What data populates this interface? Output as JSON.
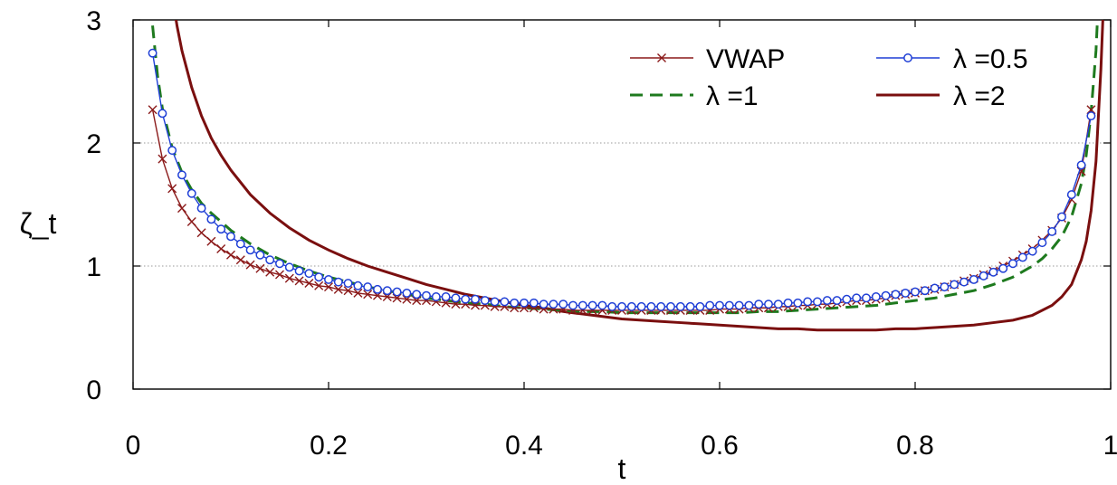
{
  "chart_data": {
    "type": "line",
    "xlabel": "t",
    "ylabel": "ζ_t",
    "xlim": [
      0,
      1
    ],
    "ylim": [
      0,
      3
    ],
    "xticks": [
      "0",
      "0.2",
      "0.4",
      "0.6",
      "0.8",
      "1"
    ],
    "yticks": [
      "0",
      "1",
      "2",
      "3"
    ],
    "grid": "horizontal dotted at y ticks",
    "legend_position": "top-right",
    "colors": {
      "vwap": "#8b1a1a",
      "lambda05": "#1f3fd6",
      "lambda1": "#1e7a1e",
      "lambda2": "#7a0f0f"
    },
    "series": [
      {
        "name": "VWAP",
        "legend_text": "VWAP",
        "style": "line-x",
        "x": [
          0.02,
          0.03,
          0.04,
          0.05,
          0.06,
          0.07,
          0.08,
          0.09,
          0.1,
          0.11,
          0.12,
          0.13,
          0.14,
          0.15,
          0.16,
          0.17,
          0.18,
          0.19,
          0.2,
          0.21,
          0.22,
          0.23,
          0.24,
          0.25,
          0.26,
          0.27,
          0.28,
          0.29,
          0.3,
          0.31,
          0.32,
          0.33,
          0.34,
          0.35,
          0.36,
          0.37,
          0.38,
          0.39,
          0.4,
          0.41,
          0.42,
          0.43,
          0.44,
          0.45,
          0.46,
          0.47,
          0.48,
          0.49,
          0.5,
          0.51,
          0.52,
          0.53,
          0.54,
          0.55,
          0.56,
          0.57,
          0.58,
          0.59,
          0.6,
          0.61,
          0.62,
          0.63,
          0.64,
          0.65,
          0.66,
          0.67,
          0.68,
          0.69,
          0.7,
          0.71,
          0.72,
          0.73,
          0.74,
          0.75,
          0.76,
          0.77,
          0.78,
          0.79,
          0.8,
          0.81,
          0.82,
          0.83,
          0.84,
          0.85,
          0.86,
          0.87,
          0.88,
          0.89,
          0.9,
          0.91,
          0.92,
          0.93,
          0.94,
          0.95,
          0.96,
          0.97,
          0.98
        ],
        "y": [
          2.27,
          1.87,
          1.63,
          1.47,
          1.36,
          1.27,
          1.2,
          1.14,
          1.09,
          1.05,
          1.01,
          0.98,
          0.95,
          0.93,
          0.9,
          0.88,
          0.86,
          0.84,
          0.83,
          0.81,
          0.8,
          0.78,
          0.77,
          0.76,
          0.75,
          0.74,
          0.73,
          0.72,
          0.72,
          0.71,
          0.7,
          0.69,
          0.69,
          0.68,
          0.68,
          0.67,
          0.67,
          0.66,
          0.66,
          0.66,
          0.65,
          0.65,
          0.65,
          0.64,
          0.64,
          0.64,
          0.64,
          0.64,
          0.64,
          0.64,
          0.64,
          0.64,
          0.64,
          0.64,
          0.64,
          0.64,
          0.64,
          0.64,
          0.65,
          0.65,
          0.65,
          0.66,
          0.66,
          0.66,
          0.67,
          0.67,
          0.68,
          0.68,
          0.69,
          0.69,
          0.7,
          0.71,
          0.72,
          0.72,
          0.73,
          0.74,
          0.76,
          0.77,
          0.78,
          0.8,
          0.81,
          0.83,
          0.85,
          0.88,
          0.9,
          0.93,
          0.96,
          1.0,
          1.04,
          1.09,
          1.14,
          1.21,
          1.29,
          1.39,
          1.54,
          1.77,
          2.27
        ]
      },
      {
        "name": "λ=0.5",
        "legend_text": "λ =0.5",
        "style": "line-circle",
        "x": [
          0.02,
          0.03,
          0.04,
          0.05,
          0.06,
          0.07,
          0.08,
          0.09,
          0.1,
          0.11,
          0.12,
          0.13,
          0.14,
          0.15,
          0.16,
          0.17,
          0.18,
          0.19,
          0.2,
          0.21,
          0.22,
          0.23,
          0.24,
          0.25,
          0.26,
          0.27,
          0.28,
          0.29,
          0.3,
          0.31,
          0.32,
          0.33,
          0.34,
          0.35,
          0.36,
          0.37,
          0.38,
          0.39,
          0.4,
          0.41,
          0.42,
          0.43,
          0.44,
          0.45,
          0.46,
          0.47,
          0.48,
          0.49,
          0.5,
          0.51,
          0.52,
          0.53,
          0.54,
          0.55,
          0.56,
          0.57,
          0.58,
          0.59,
          0.6,
          0.61,
          0.62,
          0.63,
          0.64,
          0.65,
          0.66,
          0.67,
          0.68,
          0.69,
          0.7,
          0.71,
          0.72,
          0.73,
          0.74,
          0.75,
          0.76,
          0.77,
          0.78,
          0.79,
          0.8,
          0.81,
          0.82,
          0.83,
          0.84,
          0.85,
          0.86,
          0.87,
          0.88,
          0.89,
          0.9,
          0.91,
          0.92,
          0.93,
          0.94,
          0.95,
          0.96,
          0.97,
          0.98
        ],
        "y": [
          2.73,
          2.24,
          1.94,
          1.74,
          1.59,
          1.47,
          1.38,
          1.3,
          1.24,
          1.18,
          1.13,
          1.09,
          1.05,
          1.02,
          0.99,
          0.96,
          0.94,
          0.91,
          0.89,
          0.87,
          0.86,
          0.84,
          0.83,
          0.81,
          0.8,
          0.79,
          0.78,
          0.77,
          0.76,
          0.75,
          0.75,
          0.74,
          0.73,
          0.73,
          0.72,
          0.71,
          0.71,
          0.7,
          0.7,
          0.7,
          0.69,
          0.69,
          0.69,
          0.68,
          0.68,
          0.68,
          0.68,
          0.67,
          0.67,
          0.67,
          0.67,
          0.67,
          0.67,
          0.67,
          0.67,
          0.67,
          0.67,
          0.68,
          0.68,
          0.68,
          0.68,
          0.68,
          0.69,
          0.69,
          0.69,
          0.7,
          0.7,
          0.71,
          0.71,
          0.72,
          0.72,
          0.73,
          0.74,
          0.74,
          0.75,
          0.76,
          0.77,
          0.78,
          0.79,
          0.8,
          0.82,
          0.83,
          0.85,
          0.87,
          0.89,
          0.92,
          0.95,
          0.98,
          1.02,
          1.07,
          1.12,
          1.19,
          1.28,
          1.4,
          1.58,
          1.82,
          2.22
        ]
      },
      {
        "name": "λ=1",
        "legend_text": "λ =1",
        "style": "dashed",
        "x": [
          0.015,
          0.02,
          0.025,
          0.03,
          0.04,
          0.05,
          0.06,
          0.07,
          0.08,
          0.1,
          0.12,
          0.14,
          0.16,
          0.18,
          0.2,
          0.22,
          0.24,
          0.26,
          0.28,
          0.3,
          0.32,
          0.34,
          0.36,
          0.38,
          0.4,
          0.42,
          0.44,
          0.46,
          0.48,
          0.5,
          0.52,
          0.54,
          0.56,
          0.58,
          0.6,
          0.62,
          0.64,
          0.66,
          0.68,
          0.7,
          0.72,
          0.74,
          0.76,
          0.78,
          0.8,
          0.82,
          0.84,
          0.86,
          0.88,
          0.9,
          0.92,
          0.93,
          0.94,
          0.95,
          0.96,
          0.97,
          0.975,
          0.98,
          0.985,
          0.99
        ],
        "y": [
          3.6,
          2.95,
          2.55,
          2.28,
          1.96,
          1.76,
          1.62,
          1.51,
          1.43,
          1.29,
          1.18,
          1.09,
          1.02,
          0.96,
          0.91,
          0.87,
          0.83,
          0.8,
          0.77,
          0.74,
          0.72,
          0.7,
          0.69,
          0.67,
          0.66,
          0.65,
          0.64,
          0.63,
          0.63,
          0.62,
          0.62,
          0.62,
          0.62,
          0.62,
          0.62,
          0.62,
          0.63,
          0.63,
          0.64,
          0.65,
          0.66,
          0.67,
          0.68,
          0.7,
          0.72,
          0.74,
          0.77,
          0.8,
          0.85,
          0.91,
          1.0,
          1.06,
          1.14,
          1.24,
          1.4,
          1.67,
          1.9,
          2.25,
          2.75,
          3.6
        ]
      },
      {
        "name": "λ=2",
        "legend_text": "λ =2",
        "style": "solid-thick",
        "x": [
          0.035,
          0.04,
          0.045,
          0.05,
          0.06,
          0.07,
          0.08,
          0.09,
          0.1,
          0.12,
          0.14,
          0.16,
          0.18,
          0.2,
          0.22,
          0.24,
          0.26,
          0.28,
          0.3,
          0.32,
          0.34,
          0.36,
          0.38,
          0.4,
          0.42,
          0.44,
          0.46,
          0.48,
          0.5,
          0.52,
          0.54,
          0.56,
          0.58,
          0.6,
          0.62,
          0.64,
          0.66,
          0.68,
          0.7,
          0.72,
          0.74,
          0.76,
          0.78,
          0.8,
          0.82,
          0.84,
          0.86,
          0.88,
          0.9,
          0.92,
          0.94,
          0.95,
          0.96,
          0.97,
          0.975,
          0.98,
          0.985,
          0.99,
          0.995
        ],
        "y": [
          3.6,
          3.2,
          2.95,
          2.75,
          2.45,
          2.22,
          2.04,
          1.9,
          1.78,
          1.58,
          1.43,
          1.31,
          1.21,
          1.13,
          1.06,
          1.0,
          0.95,
          0.9,
          0.85,
          0.81,
          0.77,
          0.74,
          0.71,
          0.68,
          0.66,
          0.63,
          0.61,
          0.59,
          0.57,
          0.56,
          0.55,
          0.54,
          0.53,
          0.52,
          0.51,
          0.5,
          0.49,
          0.49,
          0.48,
          0.48,
          0.48,
          0.48,
          0.49,
          0.49,
          0.5,
          0.51,
          0.52,
          0.54,
          0.56,
          0.6,
          0.68,
          0.75,
          0.85,
          1.05,
          1.2,
          1.45,
          1.85,
          2.6,
          3.6
        ]
      }
    ]
  }
}
